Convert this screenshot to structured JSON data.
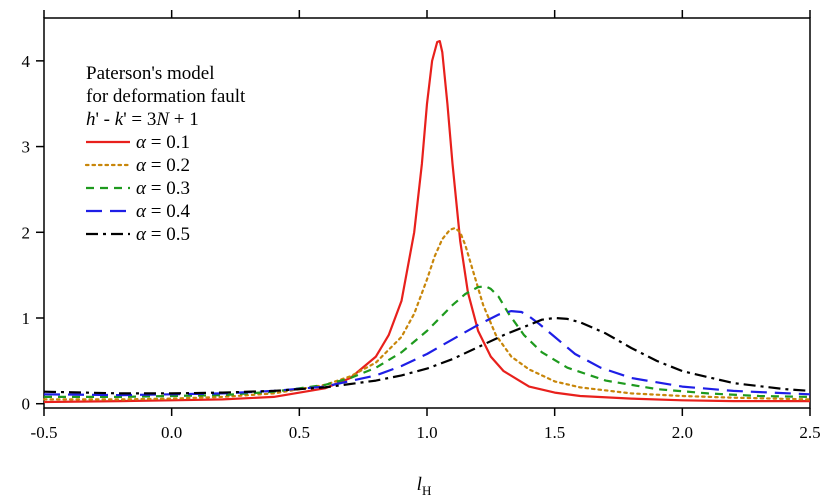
{
  "chart_data": {
    "type": "line",
    "xlabel": "l",
    "xlabel_sub": "H",
    "ylabel": "",
    "xlim": [
      -0.5,
      2.5
    ],
    "ylim": [
      -0.05,
      4.5
    ],
    "xticks": [
      -0.5,
      0.0,
      0.5,
      1.0,
      1.5,
      2.0,
      2.5
    ],
    "xtick_labels": [
      "-0.5",
      "0.0",
      "0.5",
      "1.0",
      "1.5",
      "2.0",
      "2.5"
    ],
    "yticks": [
      0,
      1,
      2,
      3,
      4
    ],
    "ytick_labels": [
      "0",
      "1",
      "2",
      "3",
      "4"
    ],
    "grid": false,
    "legend_position": "top-left",
    "legend_title_lines": [
      "Paterson's model",
      "for deformation fault"
    ],
    "legend_condition": {
      "h_var": "h",
      "mid_text": "' - ",
      "k_var": "k",
      "eq_text": "' = 3",
      "n_var": "N",
      "tail_text": " + 1"
    },
    "series": [
      {
        "name": "α = 0.1",
        "symbol": "α",
        "label_rest": " = 0.1",
        "color": "#e8201c",
        "dash": "solid",
        "x": [
          -0.5,
          -0.2,
          0.0,
          0.2,
          0.4,
          0.6,
          0.7,
          0.8,
          0.85,
          0.9,
          0.95,
          0.98,
          1.0,
          1.02,
          1.04,
          1.05,
          1.06,
          1.08,
          1.1,
          1.13,
          1.16,
          1.2,
          1.25,
          1.3,
          1.4,
          1.5,
          1.6,
          1.8,
          2.0,
          2.2,
          2.5
        ],
        "y": [
          0.02,
          0.03,
          0.04,
          0.05,
          0.08,
          0.18,
          0.3,
          0.55,
          0.8,
          1.2,
          2.0,
          2.8,
          3.5,
          4.0,
          4.22,
          4.23,
          4.1,
          3.5,
          2.8,
          1.9,
          1.3,
          0.85,
          0.55,
          0.38,
          0.2,
          0.13,
          0.09,
          0.06,
          0.04,
          0.03,
          0.03
        ]
      },
      {
        "name": "α = 0.2",
        "symbol": "α",
        "label_rest": " = 0.2",
        "color": "#c8860a",
        "dash": "dot",
        "x": [
          -0.5,
          -0.2,
          0.0,
          0.2,
          0.4,
          0.6,
          0.7,
          0.8,
          0.9,
          0.95,
          1.0,
          1.03,
          1.06,
          1.09,
          1.11,
          1.13,
          1.15,
          1.18,
          1.22,
          1.27,
          1.33,
          1.4,
          1.5,
          1.6,
          1.8,
          2.0,
          2.2,
          2.5
        ],
        "y": [
          0.05,
          0.05,
          0.06,
          0.08,
          0.12,
          0.22,
          0.32,
          0.48,
          0.78,
          1.05,
          1.45,
          1.72,
          1.92,
          2.03,
          2.05,
          2.0,
          1.85,
          1.55,
          1.15,
          0.8,
          0.55,
          0.4,
          0.26,
          0.19,
          0.12,
          0.09,
          0.07,
          0.05
        ]
      },
      {
        "name": "α = 0.3",
        "symbol": "α",
        "label_rest": " = 0.3",
        "color": "#1e9a1e",
        "dash": "dash-short",
        "x": [
          -0.5,
          -0.2,
          0.0,
          0.2,
          0.4,
          0.6,
          0.7,
          0.8,
          0.9,
          1.0,
          1.05,
          1.1,
          1.15,
          1.2,
          1.23,
          1.25,
          1.28,
          1.32,
          1.38,
          1.45,
          1.55,
          1.7,
          1.9,
          2.1,
          2.3,
          2.5
        ],
        "y": [
          0.08,
          0.08,
          0.09,
          0.1,
          0.14,
          0.22,
          0.3,
          0.42,
          0.6,
          0.85,
          1.0,
          1.15,
          1.28,
          1.36,
          1.37,
          1.34,
          1.25,
          1.05,
          0.8,
          0.6,
          0.42,
          0.27,
          0.17,
          0.12,
          0.09,
          0.08
        ]
      },
      {
        "name": "α = 0.4",
        "symbol": "α",
        "label_rest": " = 0.4",
        "color": "#1e1ee6",
        "dash": "dash-long",
        "x": [
          -0.5,
          -0.2,
          0.0,
          0.2,
          0.4,
          0.6,
          0.8,
          0.9,
          1.0,
          1.1,
          1.2,
          1.28,
          1.33,
          1.37,
          1.4,
          1.44,
          1.5,
          1.58,
          1.68,
          1.8,
          2.0,
          2.2,
          2.5
        ],
        "y": [
          0.11,
          0.1,
          0.11,
          0.12,
          0.15,
          0.2,
          0.33,
          0.44,
          0.58,
          0.75,
          0.92,
          1.04,
          1.08,
          1.07,
          1.02,
          0.93,
          0.78,
          0.58,
          0.42,
          0.3,
          0.2,
          0.15,
          0.11
        ]
      },
      {
        "name": "α = 0.5",
        "symbol": "α",
        "label_rest": " = 0.5",
        "color": "#000000",
        "dash": "dashdot",
        "x": [
          -0.5,
          -0.2,
          0.0,
          0.2,
          0.4,
          0.6,
          0.8,
          0.9,
          1.0,
          1.1,
          1.2,
          1.3,
          1.4,
          1.45,
          1.5,
          1.55,
          1.6,
          1.7,
          1.8,
          1.9,
          2.0,
          2.2,
          2.4,
          2.5
        ],
        "y": [
          0.14,
          0.12,
          0.12,
          0.13,
          0.15,
          0.19,
          0.27,
          0.33,
          0.41,
          0.52,
          0.66,
          0.8,
          0.92,
          0.98,
          1.0,
          0.99,
          0.95,
          0.82,
          0.65,
          0.5,
          0.38,
          0.24,
          0.17,
          0.15
        ]
      }
    ]
  }
}
